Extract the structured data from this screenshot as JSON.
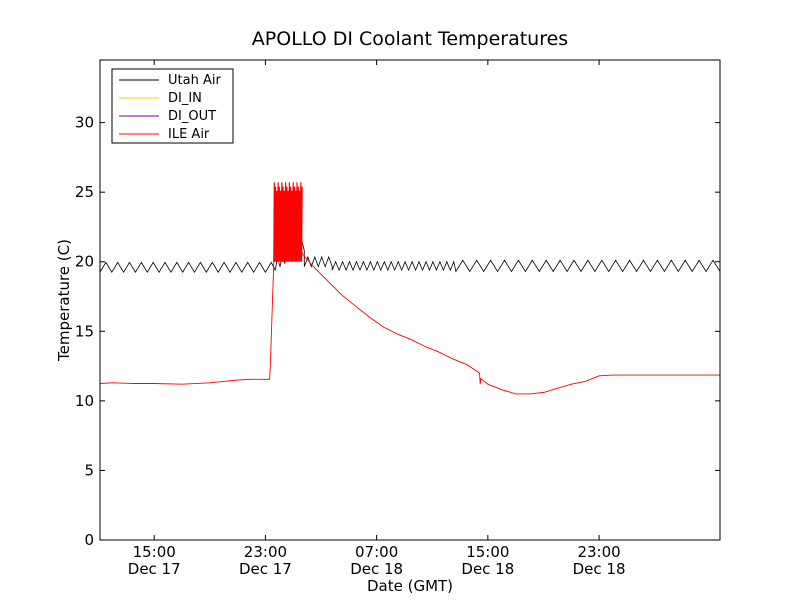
{
  "chart_data": {
    "type": "line",
    "title": "APOLLO DI Coolant Temperatures",
    "xlabel": "Date (GMT)",
    "ylabel": "Temperature (C)",
    "xlim_hours": [
      11.1,
      55.7
    ],
    "ylim": [
      0,
      34.5
    ],
    "y_ticks": [
      0,
      5,
      10,
      15,
      20,
      25,
      30
    ],
    "x_ticks": [
      {
        "hour": 15,
        "time": "15:00",
        "date": "Dec 17"
      },
      {
        "hour": 23,
        "time": "23:00",
        "date": "Dec 17"
      },
      {
        "hour": 31,
        "time": "07:00",
        "date": "Dec 18"
      },
      {
        "hour": 39,
        "time": "15:00",
        "date": "Dec 18"
      },
      {
        "hour": 47,
        "time": "23:00",
        "date": "Dec 18"
      }
    ],
    "grid": false,
    "legend": "upper-left",
    "series": [
      {
        "name": "Utah Air",
        "color": "#000000",
        "segments": [
          {
            "from": 11.1,
            "to": 23.7,
            "base": 19.6,
            "amp": 0.35,
            "period": 0.85
          },
          {
            "from": 23.7,
            "to": 25.8,
            "ramp_from": 19.8,
            "ramp_to": 21.2,
            "amp": 0.4,
            "period": 0.35
          },
          {
            "from": 25.8,
            "to": 27.8,
            "base": 20.0,
            "amp": 0.35,
            "period": 0.5
          },
          {
            "from": 27.8,
            "to": 36.7,
            "base": 19.7,
            "amp": 0.3,
            "period": 0.5
          },
          {
            "from": 36.7,
            "to": 55.7,
            "base": 19.7,
            "amp": 0.4,
            "period": 1.0
          }
        ]
      },
      {
        "name": "DI_IN",
        "color": "#ffcc00",
        "points": []
      },
      {
        "name": "DI_OUT",
        "color": "#800080",
        "points": []
      },
      {
        "name": "ILE Air",
        "color": "#ff0000",
        "points": [
          [
            11.1,
            11.25
          ],
          [
            12.0,
            11.3
          ],
          [
            13.5,
            11.25
          ],
          [
            15.0,
            11.25
          ],
          [
            17.0,
            11.2
          ],
          [
            19.0,
            11.3
          ],
          [
            21.0,
            11.5
          ],
          [
            22.0,
            11.55
          ],
          [
            23.3,
            11.55
          ],
          [
            23.35,
            12.5
          ],
          [
            23.5,
            17.0
          ],
          [
            23.6,
            20.0
          ],
          [
            25.0,
            21.0
          ],
          [
            25.4,
            21.3
          ],
          [
            25.7,
            20.5
          ],
          [
            26.5,
            19.6
          ],
          [
            27.5,
            18.6
          ],
          [
            28.5,
            17.6
          ],
          [
            29.5,
            16.8
          ],
          [
            30.5,
            16.0
          ],
          [
            31.5,
            15.3
          ],
          [
            32.5,
            14.8
          ],
          [
            33.5,
            14.4
          ],
          [
            34.5,
            13.9
          ],
          [
            35.5,
            13.5
          ],
          [
            36.5,
            13.0
          ],
          [
            37.5,
            12.6
          ],
          [
            38.4,
            12.0
          ],
          [
            38.45,
            11.2
          ],
          [
            38.5,
            11.6
          ],
          [
            39.0,
            11.2
          ],
          [
            40.0,
            10.8
          ],
          [
            41.0,
            10.5
          ],
          [
            42.0,
            10.5
          ],
          [
            43.0,
            10.6
          ],
          [
            44.0,
            10.9
          ],
          [
            45.0,
            11.2
          ],
          [
            46.0,
            11.4
          ],
          [
            47.0,
            11.8
          ],
          [
            48.0,
            11.85
          ],
          [
            55.7,
            11.85
          ]
        ],
        "spikes": {
          "from": 23.6,
          "to": 25.6,
          "low": 20.0,
          "high": 25.7,
          "count": 22
        }
      }
    ]
  }
}
